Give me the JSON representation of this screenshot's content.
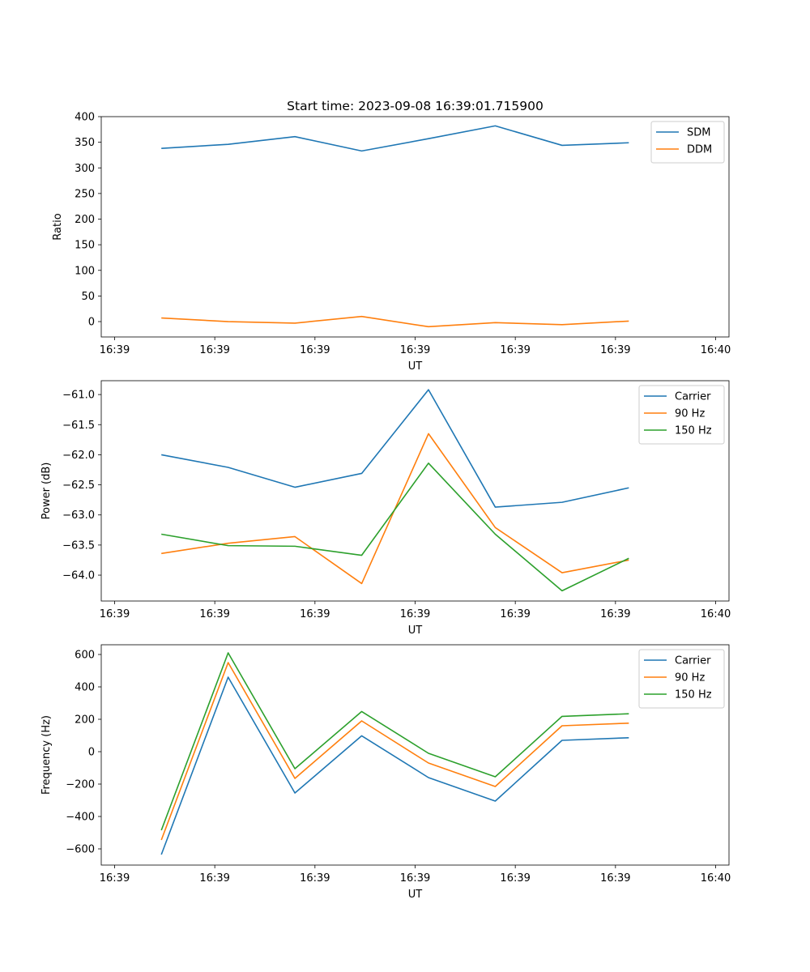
{
  "figure_title": "Start time: 2023-09-08 16:39:01.715900",
  "chart_data": [
    {
      "type": "line",
      "title": "Start time: 2023-09-08 16:39:01.715900",
      "xlabel": "UT",
      "ylabel": "Ratio",
      "xlim": [
        -0.4,
        9.0
      ],
      "ylim": [
        -30,
        400
      ],
      "xticks": [
        -0.2,
        1.3,
        2.8,
        4.3,
        5.8,
        7.3,
        8.8
      ],
      "xtick_labels": [
        "16:39",
        "16:39",
        "16:39",
        "16:39",
        "16:39",
        "16:39",
        "16:40"
      ],
      "yticks": [
        0,
        50,
        100,
        150,
        200,
        250,
        300,
        350,
        400
      ],
      "ytick_labels": [
        "0",
        "50",
        "100",
        "150",
        "200",
        "250",
        "300",
        "350",
        "400"
      ],
      "x": [
        0.5,
        1.5,
        2.5,
        3.5,
        4.5,
        5.5,
        6.5,
        7.5
      ],
      "legend": "top-right",
      "series": [
        {
          "name": "SDM",
          "color": "#1f77b4",
          "values": [
            338,
            346,
            361,
            333,
            357,
            382,
            344,
            349
          ]
        },
        {
          "name": "DDM",
          "color": "#ff7f0e",
          "values": [
            7,
            0,
            -3,
            10,
            -10,
            -2,
            -6,
            1
          ]
        }
      ]
    },
    {
      "type": "line",
      "title": "",
      "xlabel": "UT",
      "ylabel": "Power (dB)",
      "xlim": [
        -0.4,
        9.0
      ],
      "ylim": [
        -64.43,
        -60.77
      ],
      "xticks": [
        -0.2,
        1.3,
        2.8,
        4.3,
        5.8,
        7.3,
        8.8
      ],
      "xtick_labels": [
        "16:39",
        "16:39",
        "16:39",
        "16:39",
        "16:39",
        "16:39",
        "16:40"
      ],
      "yticks": [
        -64.0,
        -63.5,
        -63.0,
        -62.5,
        -62.0,
        -61.5,
        -61.0
      ],
      "ytick_labels": [
        "−64.0",
        "−63.5",
        "−63.0",
        "−62.5",
        "−62.0",
        "−61.5",
        "−61.0"
      ],
      "x": [
        0.5,
        1.5,
        2.5,
        3.5,
        4.5,
        5.5,
        6.5,
        7.5
      ],
      "legend": "top-right",
      "series": [
        {
          "name": "Carrier",
          "color": "#1f77b4",
          "values": [
            -62.0,
            -62.21,
            -62.54,
            -62.31,
            -60.92,
            -62.87,
            -62.79,
            -62.55
          ]
        },
        {
          "name": "90 Hz",
          "color": "#ff7f0e",
          "values": [
            -63.64,
            -63.47,
            -63.36,
            -64.14,
            -61.65,
            -63.21,
            -63.96,
            -63.75
          ]
        },
        {
          "name": "150 Hz",
          "color": "#2ca02c",
          "values": [
            -63.32,
            -63.51,
            -63.52,
            -63.67,
            -62.14,
            -63.32,
            -64.26,
            -63.72
          ]
        }
      ]
    },
    {
      "type": "line",
      "title": "",
      "xlabel": "UT",
      "ylabel": "Frequency (Hz)",
      "xlim": [
        -0.4,
        9.0
      ],
      "ylim": [
        -700,
        660
      ],
      "xticks": [
        -0.2,
        1.3,
        2.8,
        4.3,
        5.8,
        7.3,
        8.8
      ],
      "xtick_labels": [
        "16:39",
        "16:39",
        "16:39",
        "16:39",
        "16:39",
        "16:39",
        "16:40"
      ],
      "yticks": [
        -600,
        -400,
        -200,
        0,
        200,
        400,
        600
      ],
      "ytick_labels": [
        "−600",
        "−400",
        "−200",
        "0",
        "200",
        "400",
        "600"
      ],
      "x": [
        0.5,
        1.5,
        2.5,
        3.5,
        4.5,
        5.5,
        6.5,
        7.5
      ],
      "legend": "top-right",
      "series": [
        {
          "name": "Carrier",
          "color": "#1f77b4",
          "values": [
            -635,
            460,
            -255,
            98,
            -160,
            -305,
            70,
            86
          ]
        },
        {
          "name": "90 Hz",
          "color": "#ff7f0e",
          "values": [
            -545,
            550,
            -165,
            190,
            -70,
            -215,
            160,
            176
          ]
        },
        {
          "name": "150 Hz",
          "color": "#2ca02c",
          "values": [
            -485,
            610,
            -105,
            248,
            -10,
            -155,
            218,
            234
          ]
        }
      ]
    }
  ]
}
